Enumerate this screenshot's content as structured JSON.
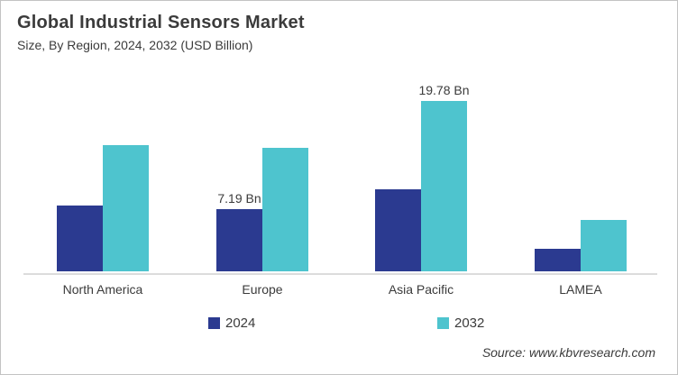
{
  "header": {
    "title": "Global Industrial Sensors Market",
    "subtitle": "Size, By Region, 2024, 2032 (USD Billion)"
  },
  "source": "Source: www.kbvresearch.com",
  "legend": [
    {
      "label": "2024",
      "color": "#2b3a90"
    },
    {
      "label": "2032",
      "color": "#4ec4ce"
    }
  ],
  "colors": {
    "series_2024": "#2b3a90",
    "series_2032": "#4ec4ce",
    "axis_line": "#dcdcdc",
    "text": "#3b3b3b",
    "background": "#ffffff",
    "border": "#c3c3c3"
  },
  "chart_data": {
    "type": "bar",
    "title": "Global Industrial Sensors Market",
    "subtitle": "Size, By Region, 2024, 2032 (USD Billion)",
    "unit": "USD Billion",
    "categories": [
      "North America",
      "Europe",
      "Asia Pacific",
      "LAMEA"
    ],
    "series": [
      {
        "name": "2024",
        "color": "#2b3a90",
        "values": [
          7.6,
          7.19,
          9.5,
          2.6
        ],
        "data_labels": [
          "",
          "7.19 Bn",
          "",
          ""
        ]
      },
      {
        "name": "2032",
        "color": "#4ec4ce",
        "values": [
          14.7,
          14.3,
          19.78,
          6.0
        ],
        "data_labels": [
          "",
          "",
          "19.78 Bn",
          ""
        ]
      }
    ],
    "labeled_points": [
      {
        "category": "Europe",
        "series": "2024",
        "value": 7.19,
        "label": "7.19 Bn"
      },
      {
        "category": "Asia Pacific",
        "series": "2032",
        "value": 19.78,
        "label": "19.78 Bn"
      }
    ],
    "ylim": [
      0,
      21
    ],
    "grid": false,
    "y_axis_visible": false,
    "legend_position": "bottom"
  }
}
